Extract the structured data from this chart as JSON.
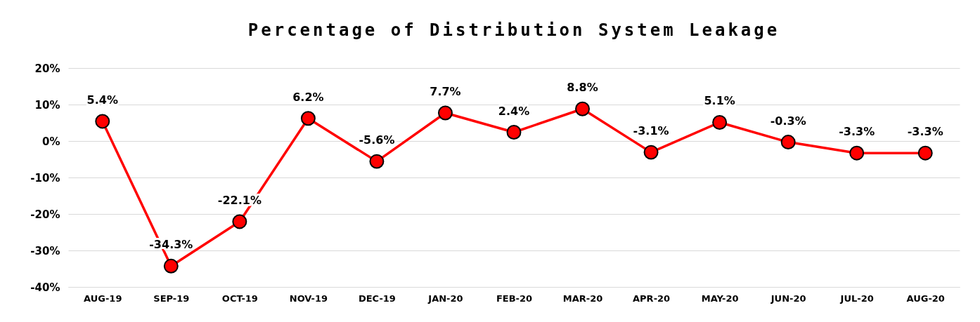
{
  "chart_data": {
    "type": "line",
    "title": "Percentage of Distribution System Leakage",
    "categories": [
      "AUG-19",
      "SEP-19",
      "OCT-19",
      "NOV-19",
      "DEC-19",
      "JAN-20",
      "FEB-20",
      "MAR-20",
      "APR-20",
      "MAY-20",
      "JUN-20",
      "JUL-20",
      "AUG-20"
    ],
    "series": [
      {
        "color": "#ff0000",
        "values": [
          5.4,
          -34.3,
          -22.1,
          6.2,
          -5.6,
          7.7,
          2.4,
          8.8,
          -3.1,
          5.1,
          -0.3,
          -3.3,
          -3.3
        ],
        "value_labels": [
          "5.4%",
          "-34.3%",
          "-22.1%",
          "6.2%",
          "-5.6%",
          "7.7%",
          "2.4%",
          "8.8%",
          "-3.1%",
          "5.1%",
          "-0.3%",
          "-3.3%",
          "-3.3%"
        ]
      }
    ],
    "ylim": [
      -40,
      20
    ],
    "yticks": [
      {
        "value": -40,
        "label": "-40%"
      },
      {
        "value": -30,
        "label": "-30%"
      },
      {
        "value": -20,
        "label": "-20%"
      },
      {
        "value": -10,
        "label": "-10%"
      },
      {
        "value": 0,
        "label": "0%"
      },
      {
        "value": 10,
        "label": "10%"
      },
      {
        "value": 20,
        "label": "20%"
      }
    ],
    "grid": "y",
    "marker": "circle",
    "line_style": "solid"
  }
}
